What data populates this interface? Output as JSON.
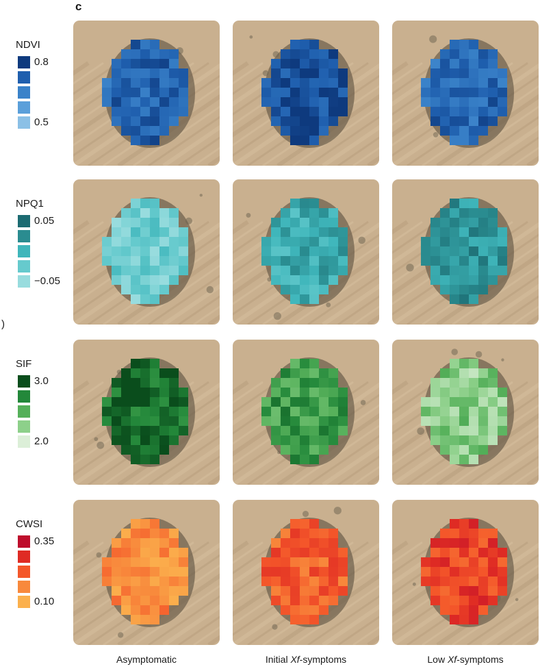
{
  "panel_letter": "c",
  "side_letter": ")",
  "columns": [
    {
      "label": "Asymptomatic"
    },
    {
      "label_pre": "Initial ",
      "label_em": "Xf",
      "label_post": "-symptoms"
    },
    {
      "label_pre": "Low ",
      "label_em": "Xf",
      "label_post": "-symptoms"
    }
  ],
  "rows": [
    {
      "title": "NDVI",
      "tick_max": "0.8",
      "tick_min": "0.5",
      "swatches": [
        "#0e3a7e",
        "#1f5fae",
        "#3a82c9",
        "#5a9fda",
        "#8bc0e6"
      ],
      "tile_levels": [
        0.72,
        0.88,
        0.7
      ]
    },
    {
      "title": "NPQ1",
      "tick_max": "0.05",
      "tick_min": "−0.05",
      "swatches": [
        "#1c6b72",
        "#2a8c90",
        "#3fb6bb",
        "#66cacd",
        "#98dcde"
      ],
      "tile_levels": [
        0.2,
        0.55,
        0.72
      ]
    },
    {
      "title": "SIF",
      "tick_max": "3.0",
      "tick_min": "2.0",
      "swatches": [
        "#0a4d1c",
        "#23883a",
        "#55b05a",
        "#8dd08a",
        "#dcefd8"
      ],
      "tile_levels": [
        0.88,
        0.62,
        0.3
      ]
    },
    {
      "title": "CWSI",
      "tick_max": "0.35",
      "tick_min": "0.10",
      "swatches": [
        "#be0d2c",
        "#df2b24",
        "#f4572a",
        "#f8893c",
        "#fbb04d"
      ],
      "tile_levels": [
        0.22,
        0.45,
        0.62
      ]
    }
  ]
}
